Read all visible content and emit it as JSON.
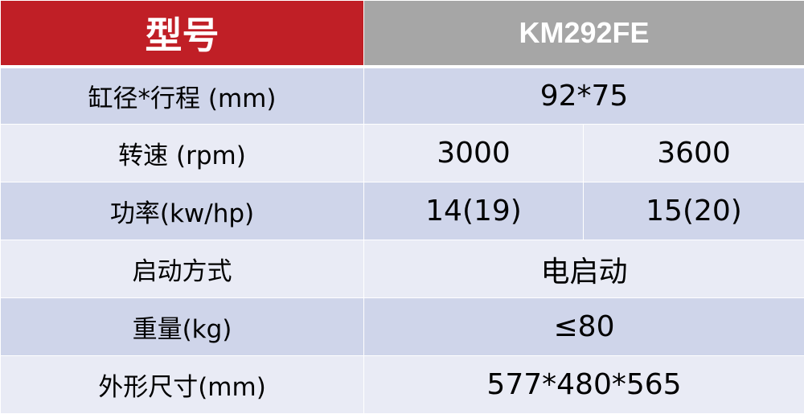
{
  "header": {
    "label": "型号",
    "model": "KM292FE"
  },
  "rows": [
    {
      "label": "缸径*行程 (mm)",
      "value": "92*75"
    },
    {
      "label": "转速 (rpm)",
      "values": [
        "3000",
        "3600"
      ]
    },
    {
      "label": "功率(kw/hp)",
      "values": [
        "14(19)",
        "15(20)"
      ]
    },
    {
      "label": "启动方式",
      "value": "电启动"
    },
    {
      "label": "重量(kg)",
      "value": "≤80"
    },
    {
      "label": "外形尺寸(mm)",
      "value": "577*480*565"
    }
  ],
  "colors": {
    "header_left": "#c01f26",
    "header_right": "#a6a6a6",
    "row_dark": "#cfd5ea",
    "row_light": "#e9ebf5"
  }
}
